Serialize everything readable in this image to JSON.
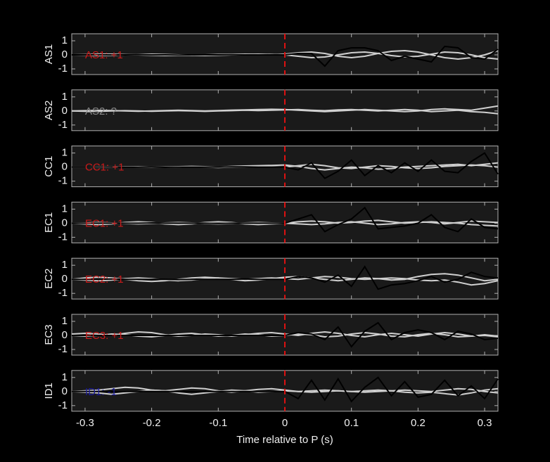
{
  "chart_data": [
    {
      "type": "line",
      "ylabel": "AS1",
      "annotation": "AS1: +1",
      "annotation_color": "#cc1a1a",
      "vline": 0,
      "vline_color": "#dd1111",
      "xlim": [
        -0.32,
        0.32
      ],
      "ylim": [
        -1.4,
        1.5
      ],
      "yticks": [
        -1,
        0,
        1
      ],
      "x": [
        -0.32,
        -0.3,
        -0.28,
        -0.26,
        -0.24,
        -0.22,
        -0.2,
        -0.18,
        -0.16,
        -0.14,
        -0.12,
        -0.1,
        -0.08,
        -0.06,
        -0.04,
        -0.02,
        0,
        0.02,
        0.04,
        0.06,
        0.08,
        0.1,
        0.12,
        0.14,
        0.16,
        0.18,
        0.2,
        0.22,
        0.24,
        0.26,
        0.28,
        0.3,
        0.32
      ],
      "series": [
        {
          "color": "#d0d0d0",
          "values": [
            0,
            0.02,
            0.05,
            0.05,
            0.02,
            0,
            -0.03,
            -0.05,
            -0.05,
            -0.03,
            0,
            0.03,
            0.05,
            0.05,
            0.03,
            0,
            0.05,
            0.15,
            0.2,
            0.1,
            -0.1,
            -0.2,
            -0.1,
            0.1,
            0.25,
            0.3,
            0.2,
            0,
            -0.2,
            -0.3,
            -0.2,
            0,
            0.3
          ]
        },
        {
          "color": "#d0d0d0",
          "values": [
            0,
            -0.02,
            -0.05,
            -0.03,
            0,
            0.03,
            0.05,
            0.03,
            0,
            -0.03,
            -0.05,
            -0.03,
            0,
            0.03,
            0.05,
            0.03,
            0,
            -0.1,
            -0.2,
            -0.15,
            0,
            0.15,
            0.2,
            0.1,
            -0.05,
            -0.15,
            -0.1,
            0.05,
            0.2,
            0.15,
            0,
            -0.2,
            -0.3
          ]
        },
        {
          "color": "#000000",
          "values": [
            0,
            0,
            0,
            0,
            0,
            0.02,
            0,
            0,
            -0.02,
            0,
            0,
            0,
            0.02,
            0,
            0,
            0,
            0,
            0.1,
            0.1,
            -0.8,
            0.3,
            0.5,
            0.5,
            0.3,
            -0.4,
            -0.1,
            -0.3,
            -0.5,
            0.6,
            0.5,
            -0.2,
            -0.3,
            0.4
          ]
        }
      ]
    },
    {
      "type": "line",
      "ylabel": "AS2",
      "annotation": "AS2: ?",
      "annotation_color": "#8a8a8a",
      "vline": 0,
      "vline_color": "#dd1111",
      "xlim": [
        -0.32,
        0.32
      ],
      "ylim": [
        -1.4,
        1.5
      ],
      "yticks": [
        -1,
        0,
        1
      ],
      "x": [
        -0.32,
        -0.3,
        -0.28,
        -0.26,
        -0.24,
        -0.22,
        -0.2,
        -0.18,
        -0.16,
        -0.14,
        -0.12,
        -0.1,
        -0.08,
        -0.06,
        -0.04,
        -0.02,
        0,
        0.02,
        0.04,
        0.06,
        0.08,
        0.1,
        0.12,
        0.14,
        0.16,
        0.18,
        0.2,
        0.22,
        0.24,
        0.26,
        0.28,
        0.3,
        0.32
      ],
      "series": [
        {
          "color": "#d0d0d0",
          "values": [
            0,
            0.02,
            0.04,
            0.03,
            0,
            -0.02,
            0,
            0.03,
            0.05,
            0.03,
            0,
            0.03,
            0.06,
            0.08,
            0.1,
            0.12,
            0.1,
            0.05,
            0,
            -0.05,
            0,
            0.05,
            0.1,
            0.05,
            0,
            -0.05,
            0,
            0.1,
            0.15,
            0.1,
            0.05,
            0.2,
            0.35
          ]
        },
        {
          "color": "#d0d0d0",
          "values": [
            0,
            -0.02,
            -0.03,
            0,
            0.02,
            0,
            -0.02,
            0,
            0.02,
            0,
            -0.03,
            0,
            0.02,
            0.05,
            0.03,
            0.05,
            0.08,
            0.1,
            0.05,
            0.02,
            0.08,
            0.1,
            0.05,
            0,
            0.05,
            0.1,
            0.05,
            -0.05,
            0,
            0.05,
            -0.05,
            -0.1,
            -0.2
          ]
        }
      ]
    },
    {
      "type": "line",
      "ylabel": "CC1",
      "annotation": "CC1: +1",
      "annotation_color": "#cc1a1a",
      "vline": 0,
      "vline_color": "#dd1111",
      "xlim": [
        -0.32,
        0.32
      ],
      "ylim": [
        -1.4,
        1.5
      ],
      "yticks": [
        -1,
        0,
        1
      ],
      "x": [
        -0.32,
        -0.3,
        -0.28,
        -0.26,
        -0.24,
        -0.22,
        -0.2,
        -0.18,
        -0.16,
        -0.14,
        -0.12,
        -0.1,
        -0.08,
        -0.06,
        -0.04,
        -0.02,
        0,
        0.02,
        0.04,
        0.06,
        0.08,
        0.1,
        0.12,
        0.14,
        0.16,
        0.18,
        0.2,
        0.22,
        0.24,
        0.26,
        0.28,
        0.3,
        0.32
      ],
      "series": [
        {
          "color": "#d0d0d0",
          "values": [
            0,
            0,
            0.02,
            0.03,
            0.02,
            0,
            -0.02,
            0,
            0.03,
            0.05,
            0.03,
            0,
            0.05,
            0.08,
            0.1,
            0.12,
            0.15,
            0.05,
            -0.1,
            -0.2,
            -0.1,
            0,
            -0.05,
            -0.15,
            -0.1,
            0,
            0.05,
            0.1,
            0.15,
            0.2,
            0.1,
            0.2,
            0.3
          ]
        },
        {
          "color": "#d0d0d0",
          "values": [
            0,
            0,
            -0.02,
            0,
            0.02,
            0.03,
            0,
            -0.02,
            0,
            0.02,
            0,
            -0.03,
            0,
            0.02,
            0.05,
            0.03,
            0,
            0.1,
            0.2,
            0.1,
            -0.05,
            -0.1,
            0,
            0.1,
            0.05,
            -0.05,
            -0.1,
            -0.05,
            0.05,
            0.1,
            0.15,
            0.1,
            0
          ]
        },
        {
          "color": "#000000",
          "values": [
            0,
            0,
            0,
            0.02,
            0,
            0,
            0,
            -0.02,
            0,
            0,
            0,
            0,
            0.02,
            0.02,
            0,
            0,
            0,
            -0.2,
            0.3,
            -0.8,
            -0.3,
            0.5,
            -0.6,
            0.1,
            -0.4,
            0.3,
            -0.3,
            0.5,
            -0.3,
            -0.4,
            0.4,
            1.0,
            -0.5
          ]
        }
      ]
    },
    {
      "type": "line",
      "ylabel": "EC1",
      "annotation": "EC1: +1",
      "annotation_color": "#cc1a1a",
      "vline": 0,
      "vline_color": "#dd1111",
      "xlim": [
        -0.32,
        0.32
      ],
      "ylim": [
        -1.4,
        1.5
      ],
      "yticks": [
        -1,
        0,
        1
      ],
      "x": [
        -0.32,
        -0.3,
        -0.28,
        -0.26,
        -0.24,
        -0.22,
        -0.2,
        -0.18,
        -0.16,
        -0.14,
        -0.12,
        -0.1,
        -0.08,
        -0.06,
        -0.04,
        -0.02,
        0,
        0.02,
        0.04,
        0.06,
        0.08,
        0.1,
        0.12,
        0.14,
        0.16,
        0.18,
        0.2,
        0.22,
        0.24,
        0.26,
        0.28,
        0.3,
        0.32
      ],
      "series": [
        {
          "color": "#d0d0d0",
          "values": [
            0,
            -0.05,
            -0.1,
            -0.05,
            0.05,
            0.1,
            0.05,
            -0.05,
            -0.1,
            -0.05,
            0.05,
            0.1,
            0.05,
            -0.05,
            -0.1,
            -0.05,
            0,
            0.1,
            0.15,
            0.1,
            0,
            0.05,
            0.15,
            0.2,
            0.1,
            0,
            0.05,
            0.1,
            0.05,
            0,
            -0.1,
            -0.15,
            -0.2
          ]
        },
        {
          "color": "#d0d0d0",
          "values": [
            0,
            0.02,
            0.05,
            0.02,
            -0.02,
            -0.05,
            -0.02,
            0.02,
            0.05,
            0.02,
            -0.02,
            -0.05,
            -0.02,
            0.02,
            0.05,
            0.02,
            0,
            -0.05,
            -0.1,
            -0.05,
            0.05,
            0.1,
            0,
            -0.1,
            -0.05,
            0.05,
            0.1,
            0.05,
            -0.05,
            0.05,
            0.15,
            0.1,
            0.05
          ]
        },
        {
          "color": "#000000",
          "values": [
            0,
            0,
            0,
            0,
            0,
            0,
            0.02,
            0,
            0,
            0,
            0,
            -0.02,
            0,
            0,
            0,
            0,
            0,
            0.3,
            0.6,
            -0.6,
            -0.1,
            0.3,
            1.1,
            -0.4,
            -0.3,
            -0.2,
            0.0,
            0.6,
            -0.3,
            -0.6,
            0.3,
            -0.3,
            -0.4
          ]
        }
      ]
    },
    {
      "type": "line",
      "ylabel": "EC2",
      "annotation": "EC2: +1",
      "annotation_color": "#cc1a1a",
      "vline": 0,
      "vline_color": "#dd1111",
      "xlim": [
        -0.32,
        0.32
      ],
      "ylim": [
        -1.4,
        1.5
      ],
      "yticks": [
        -1,
        0,
        1
      ],
      "x": [
        -0.32,
        -0.3,
        -0.28,
        -0.26,
        -0.24,
        -0.22,
        -0.2,
        -0.18,
        -0.16,
        -0.14,
        -0.12,
        -0.1,
        -0.08,
        -0.06,
        -0.04,
        -0.02,
        0,
        0.02,
        0.04,
        0.06,
        0.08,
        0.1,
        0.12,
        0.14,
        0.16,
        0.18,
        0.2,
        0.22,
        0.24,
        0.26,
        0.28,
        0.3,
        0.32
      ],
      "series": [
        {
          "color": "#d0d0d0",
          "values": [
            0,
            0.1,
            0.15,
            0.1,
            0,
            -0.1,
            -0.15,
            -0.1,
            0,
            0.1,
            0.15,
            0.1,
            0,
            -0.1,
            -0.05,
            0.05,
            0.15,
            0.2,
            0.1,
            0,
            -0.1,
            0,
            0.1,
            0.05,
            -0.05,
            0,
            0.2,
            0.35,
            0.4,
            0.3,
            0.1,
            -0.1,
            0
          ]
        },
        {
          "color": "#d0d0d0",
          "values": [
            0,
            -0.05,
            -0.1,
            -0.05,
            0.05,
            0.1,
            0.05,
            -0.05,
            -0.1,
            -0.05,
            0.05,
            0.1,
            0.05,
            0,
            0.05,
            0.1,
            0.05,
            0,
            0.1,
            0.2,
            0.15,
            0.05,
            0,
            0.05,
            0.1,
            0.05,
            -0.05,
            -0.1,
            -0.05,
            -0.2,
            -0.4,
            -0.3,
            -0.1
          ]
        },
        {
          "color": "#000000",
          "values": [
            0,
            0,
            0,
            0.02,
            0,
            0,
            0,
            0,
            -0.02,
            0,
            0,
            0,
            0,
            0.02,
            0,
            0,
            0,
            0.2,
            0.1,
            -0.2,
            0.3,
            -0.5,
            0.9,
            -0.7,
            -0.4,
            -0.3,
            -0.1,
            0.2,
            -0.2,
            0.0,
            0.5,
            0.2,
            0.1
          ]
        }
      ]
    },
    {
      "type": "line",
      "ylabel": "EC3",
      "annotation": "EC3: +1",
      "annotation_color": "#cc1a1a",
      "vline": 0,
      "vline_color": "#dd1111",
      "xlim": [
        -0.32,
        0.32
      ],
      "ylim": [
        -1.4,
        1.5
      ],
      "yticks": [
        -1,
        0,
        1
      ],
      "x": [
        -0.32,
        -0.3,
        -0.28,
        -0.26,
        -0.24,
        -0.22,
        -0.2,
        -0.18,
        -0.16,
        -0.14,
        -0.12,
        -0.1,
        -0.08,
        -0.06,
        -0.04,
        -0.02,
        0,
        0.02,
        0.04,
        0.06,
        0.08,
        0.1,
        0.12,
        0.14,
        0.16,
        0.18,
        0.2,
        0.22,
        0.24,
        0.26,
        0.28,
        0.3,
        0.32
      ],
      "series": [
        {
          "color": "#d0d0d0",
          "values": [
            0.1,
            0.15,
            0.1,
            0,
            0.15,
            0.25,
            0.2,
            0.05,
            -0.05,
            0,
            0.1,
            0.05,
            -0.05,
            0.05,
            0.15,
            0.2,
            0.1,
            0,
            0.15,
            0.25,
            0.15,
            0,
            -0.1,
            0.05,
            0.15,
            0.05,
            -0.05,
            0.1,
            0.2,
            0.1,
            -0.05,
            0,
            -0.1
          ]
        },
        {
          "color": "#d0d0d0",
          "values": [
            0,
            -0.05,
            0,
            0.1,
            0.05,
            -0.05,
            -0.1,
            0,
            0.1,
            0.15,
            0.05,
            -0.05,
            0,
            0.1,
            0.05,
            -0.05,
            0,
            0.1,
            0.05,
            -0.1,
            -0.05,
            0.1,
            0.2,
            0.1,
            -0.05,
            -0.1,
            0.05,
            0.15,
            0.05,
            -0.1,
            -0.05,
            0.05,
            -0.05
          ]
        },
        {
          "color": "#000000",
          "values": [
            0,
            0,
            0,
            0,
            0,
            0,
            0,
            0,
            0,
            0,
            0,
            0,
            0,
            0,
            0,
            0,
            0,
            0.2,
            0.1,
            -0.3,
            0.6,
            -0.8,
            0.3,
            0.9,
            -0.3,
            0.2,
            0.4,
            0.2,
            -0.3,
            0.3,
            0.1,
            -0.3,
            -0.2
          ]
        }
      ]
    },
    {
      "type": "line",
      "ylabel": "ID1",
      "annotation": "ID1: -1",
      "annotation_color": "#1a1a99",
      "vline": 0,
      "vline_color": "#dd1111",
      "xlim": [
        -0.32,
        0.32
      ],
      "ylim": [
        -1.4,
        1.5
      ],
      "yticks": [
        -1,
        0,
        1
      ],
      "xticks": [
        -0.3,
        -0.2,
        -0.1,
        0,
        0.1,
        0.2,
        0.3
      ],
      "xlabel": "Time relative to P (s)",
      "x": [
        -0.32,
        -0.3,
        -0.28,
        -0.26,
        -0.24,
        -0.22,
        -0.2,
        -0.18,
        -0.16,
        -0.14,
        -0.12,
        -0.1,
        -0.08,
        -0.06,
        -0.04,
        -0.02,
        0,
        0.02,
        0.04,
        0.06,
        0.08,
        0.1,
        0.12,
        0.14,
        0.16,
        0.18,
        0.2,
        0.22,
        0.24,
        0.26,
        0.28,
        0.3,
        0.32
      ],
      "series": [
        {
          "color": "#d0d0d0",
          "values": [
            0,
            0.05,
            0.1,
            0.2,
            0.3,
            0.25,
            0.1,
            0.05,
            0.15,
            0.25,
            0.2,
            0.05,
            -0.05,
            0.05,
            0.15,
            0.2,
            0.1,
            0,
            -0.05,
            0,
            0.05,
            0,
            -0.05,
            0,
            0.05,
            0.1,
            0.05,
            0,
            0.1,
            0.2,
            0.15,
            0,
            -0.1
          ]
        },
        {
          "color": "#d0d0d0",
          "values": [
            0,
            -0.05,
            -0.1,
            -0.2,
            -0.1,
            0,
            0.1,
            0.05,
            -0.1,
            -0.2,
            -0.1,
            0,
            0.1,
            0.05,
            -0.05,
            0,
            0.05,
            0,
            0.05,
            0.1,
            0.05,
            0,
            0.05,
            0.1,
            0.05,
            -0.05,
            -0.1,
            -0.05,
            -0.15,
            -0.25,
            -0.1,
            0.1,
            0.2
          ]
        },
        {
          "color": "#000000",
          "values": [
            0,
            0,
            0,
            0,
            0,
            0,
            0,
            0,
            0,
            0,
            0,
            0,
            0,
            0,
            0,
            0,
            0,
            -0.5,
            0.8,
            -0.6,
            0.9,
            -0.7,
            0.3,
            1.0,
            -0.3,
            0.7,
            -0.4,
            -0.2,
            0.8,
            -0.3,
            0.4,
            -0.5,
            0.9
          ]
        }
      ]
    }
  ]
}
